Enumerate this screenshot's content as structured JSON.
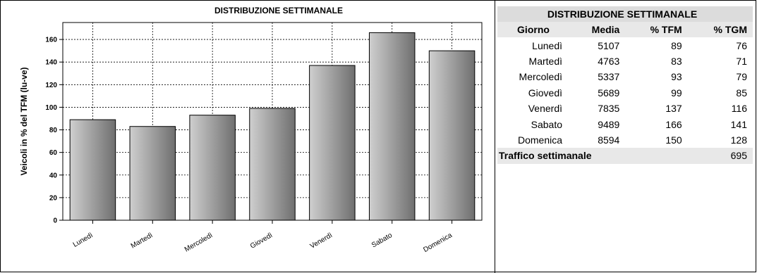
{
  "chart_data": {
    "type": "bar",
    "title": "DISTRIBUZIONE SETTIMANALE",
    "ylabel": "Veicoli in % del TFM (lu-ve)",
    "xlabel": "",
    "categories": [
      "Lunedì",
      "Martedì",
      "Mercoledì",
      "Giovedì",
      "Venerdì",
      "Sabato",
      "Domenica"
    ],
    "values": [
      89,
      83,
      93,
      99,
      137,
      166,
      150
    ],
    "ylim": [
      0,
      175
    ],
    "yticks": [
      0,
      20,
      40,
      60,
      80,
      100,
      120,
      140,
      160
    ],
    "grid": true,
    "legend": "none",
    "bar_gradient": [
      "#cfcfcf",
      "#6f6f6f"
    ]
  },
  "table": {
    "title": "DISTRIBUZIONE SETTIMANALE",
    "headers": [
      "Giorno",
      "Media",
      "% TFM",
      "% TGM"
    ],
    "rows": [
      {
        "giorno": "Lunedì",
        "media": "5107",
        "tfm": "89",
        "tgm": "76"
      },
      {
        "giorno": "Martedì",
        "media": "4763",
        "tfm": "83",
        "tgm": "71"
      },
      {
        "giorno": "Mercoledì",
        "media": "5337",
        "tfm": "93",
        "tgm": "79"
      },
      {
        "giorno": "Giovedì",
        "media": "5689",
        "tfm": "99",
        "tgm": "85"
      },
      {
        "giorno": "Venerdì",
        "media": "7835",
        "tfm": "137",
        "tgm": "116"
      },
      {
        "giorno": "Sabato",
        "media": "9489",
        "tfm": "166",
        "tgm": "141"
      },
      {
        "giorno": "Domenica",
        "media": "8594",
        "tfm": "150",
        "tgm": "128"
      }
    ],
    "footer_label": "Traffico settimanale",
    "footer_value": "695"
  }
}
